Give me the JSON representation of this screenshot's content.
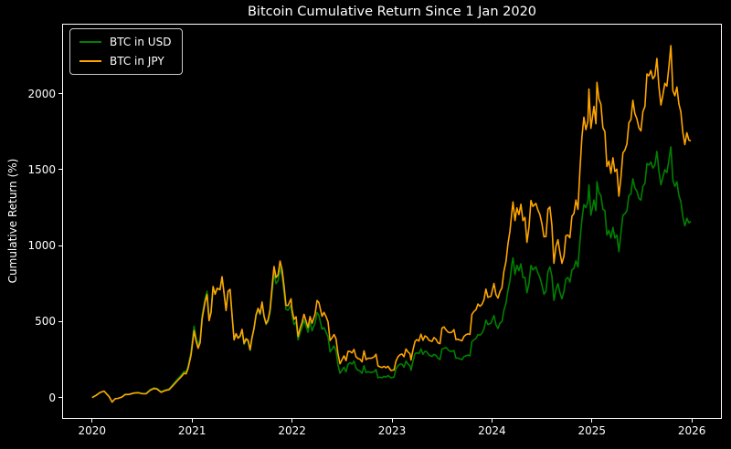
{
  "chart_data": {
    "type": "line",
    "title": "Bitcoin Cumulative Return Since 1 Jan 2020",
    "xlabel": "",
    "ylabel": "Cumulative Return (%)",
    "background_color": "#000000",
    "text_color": "#ffffff",
    "spine_color": "#ffffff",
    "grid": false,
    "legend_position": "upper-left",
    "xlim": [
      2019.7,
      2026.3
    ],
    "ylim": [
      -140,
      2460
    ],
    "x_ticks": [
      2020,
      2021,
      2022,
      2023,
      2024,
      2025,
      2026
    ],
    "x_tick_labels": [
      "2020",
      "2021",
      "2022",
      "2023",
      "2024",
      "2025",
      "2026"
    ],
    "y_ticks": [
      0,
      500,
      1000,
      1500,
      2000
    ],
    "y_tick_labels": [
      "0",
      "500",
      "1000",
      "1500",
      "2000"
    ],
    "x": [
      2020.0,
      2020.04,
      2020.08,
      2020.12,
      2020.17,
      2020.2,
      2020.23,
      2020.26,
      2020.3,
      2020.33,
      2020.37,
      2020.42,
      2020.46,
      2020.5,
      2020.54,
      2020.58,
      2020.62,
      2020.65,
      2020.69,
      2020.73,
      2020.77,
      2020.81,
      2020.85,
      2020.89,
      2020.92,
      2020.94,
      2020.96,
      2020.99,
      2021.02,
      2021.04,
      2021.06,
      2021.08,
      2021.1,
      2021.13,
      2021.15,
      2021.17,
      2021.19,
      2021.21,
      2021.23,
      2021.25,
      2021.28,
      2021.3,
      2021.32,
      2021.34,
      2021.36,
      2021.38,
      2021.4,
      2021.42,
      2021.44,
      2021.46,
      2021.48,
      2021.5,
      2021.52,
      2021.54,
      2021.56,
      2021.58,
      2021.6,
      2021.62,
      2021.64,
      2021.66,
      2021.68,
      2021.7,
      2021.72,
      2021.74,
      2021.76,
      2021.78,
      2021.8,
      2021.82,
      2021.84,
      2021.86,
      2021.88,
      2021.9,
      2021.92,
      2021.94,
      2021.96,
      2021.99,
      2022.0,
      2022.02,
      2022.04,
      2022.06,
      2022.08,
      2022.1,
      2022.12,
      2022.14,
      2022.16,
      2022.18,
      2022.2,
      2022.23,
      2022.25,
      2022.27,
      2022.3,
      2022.32,
      2022.34,
      2022.36,
      2022.38,
      2022.4,
      2022.42,
      2022.44,
      2022.46,
      2022.48,
      2022.5,
      2022.52,
      2022.54,
      2022.56,
      2022.58,
      2022.6,
      2022.62,
      2022.64,
      2022.66,
      2022.68,
      2022.7,
      2022.72,
      2022.74,
      2022.76,
      2022.79,
      2022.82,
      2022.84,
      2022.86,
      2022.88,
      2022.9,
      2022.92,
      2022.94,
      2022.96,
      2022.99,
      2023.02,
      2023.04,
      2023.06,
      2023.08,
      2023.1,
      2023.12,
      2023.14,
      2023.16,
      2023.18,
      2023.19,
      2023.21,
      2023.23,
      2023.25,
      2023.27,
      2023.29,
      2023.31,
      2023.33,
      2023.35,
      2023.37,
      2023.4,
      2023.42,
      2023.44,
      2023.46,
      2023.48,
      2023.5,
      2023.52,
      2023.54,
      2023.56,
      2023.58,
      2023.6,
      2023.62,
      2023.64,
      2023.66,
      2023.68,
      2023.7,
      2023.72,
      2023.74,
      2023.76,
      2023.78,
      2023.8,
      2023.82,
      2023.84,
      2023.86,
      2023.88,
      2023.9,
      2023.92,
      2023.94,
      2023.96,
      2023.99,
      2024.02,
      2024.04,
      2024.06,
      2024.08,
      2024.1,
      2024.12,
      2024.14,
      2024.16,
      2024.18,
      2024.2,
      2024.21,
      2024.23,
      2024.25,
      2024.27,
      2024.29,
      2024.31,
      2024.33,
      2024.35,
      2024.37,
      2024.39,
      2024.41,
      2024.44,
      2024.46,
      2024.48,
      2024.5,
      2024.52,
      2024.54,
      2024.56,
      2024.58,
      2024.6,
      2024.62,
      2024.64,
      2024.66,
      2024.68,
      2024.7,
      2024.72,
      2024.74,
      2024.76,
      2024.78,
      2024.8,
      2024.82,
      2024.84,
      2024.86,
      2024.88,
      2024.9,
      2024.92,
      2024.94,
      2024.96,
      2024.97,
      2024.99,
      2025.02,
      2025.04,
      2025.05,
      2025.07,
      2025.09,
      2025.11,
      2025.13,
      2025.15,
      2025.17,
      2025.19,
      2025.21,
      2025.23,
      2025.25,
      2025.27,
      2025.29,
      2025.31,
      2025.33,
      2025.35,
      2025.37,
      2025.39,
      2025.41,
      2025.43,
      2025.45,
      2025.47,
      2025.49,
      2025.51,
      2025.53,
      2025.55,
      2025.57,
      2025.59,
      2025.61,
      2025.63,
      2025.65,
      2025.67,
      2025.69,
      2025.71,
      2025.73,
      2025.75,
      2025.77,
      2025.79,
      2025.81,
      2025.83,
      2025.85,
      2025.87,
      2025.89,
      2025.91,
      2025.93,
      2025.95,
      2025.97,
      2025.99
    ],
    "series": [
      {
        "name": "BTC in USD",
        "color": "#008000",
        "values": [
          0,
          15,
          33,
          42,
          8,
          -30,
          -7,
          -5,
          5,
          22,
          23,
          31,
          34,
          27,
          27,
          53,
          64,
          60,
          39,
          50,
          57,
          87,
          118,
          147,
          172,
          167,
          205,
          300,
          470,
          395,
          345,
          380,
          540,
          650,
          700,
          520,
          570,
          730,
          680,
          715,
          710,
          795,
          690,
          580,
          700,
          710,
          540,
          380,
          420,
          390,
          400,
          440,
          350,
          380,
          370,
          310,
          390,
          450,
          540,
          580,
          545,
          620,
          530,
          480,
          500,
          560,
          690,
          820,
          750,
          770,
          858,
          800,
          690,
          580,
          575,
          610,
          540,
          480,
          500,
          380,
          425,
          460,
          510,
          470,
          430,
          500,
          440,
          490,
          560,
          540,
          450,
          460,
          430,
          400,
          300,
          320,
          340,
          310,
          215,
          160,
          180,
          200,
          170,
          220,
          230,
          220,
          240,
          195,
          180,
          175,
          160,
          210,
          165,
          170,
          165,
          170,
          185,
          130,
          135,
          130,
          140,
          135,
          145,
          130,
          135,
          190,
          210,
          220,
          220,
          200,
          240,
          220,
          210,
          180,
          240,
          290,
          295,
          290,
          320,
          285,
          305,
          300,
          280,
          270,
          285,
          277,
          260,
          250,
          320,
          325,
          330,
          315,
          305,
          305,
          310,
          260,
          260,
          255,
          250,
          270,
          275,
          280,
          275,
          370,
          380,
          390,
          415,
          410,
          425,
          450,
          510,
          480,
          490,
          540,
          480,
          455,
          490,
          500,
          575,
          620,
          705,
          770,
          880,
          920,
          810,
          870,
          835,
          880,
          790,
          790,
          690,
          750,
          870,
          840,
          860,
          820,
          790,
          740,
          680,
          700,
          830,
          860,
          800,
          640,
          710,
          750,
          690,
          650,
          700,
          780,
          790,
          760,
          840,
          850,
          900,
          860,
          1030,
          1170,
          1270,
          1250,
          1290,
          1400,
          1200,
          1300,
          1230,
          1420,
          1350,
          1330,
          1240,
          1230,
          1070,
          1100,
          1050,
          1120,
          1050,
          1070,
          960,
          1080,
          1200,
          1210,
          1230,
          1330,
          1340,
          1440,
          1380,
          1360,
          1310,
          1300,
          1390,
          1410,
          1540,
          1530,
          1550,
          1510,
          1530,
          1620,
          1490,
          1400,
          1450,
          1500,
          1480,
          1560,
          1650,
          1430,
          1390,
          1420,
          1330,
          1290,
          1190,
          1130,
          1180,
          1150,
          1160
        ]
      },
      {
        "name": "BTC in JPY",
        "color": "#ffa500",
        "values": [
          0,
          15,
          34,
          43,
          6,
          -29,
          -7,
          -5,
          4,
          20,
          21,
          30,
          32,
          26,
          25,
          48,
          60,
          56,
          35,
          46,
          52,
          80,
          109,
          136,
          160,
          156,
          191,
          280,
          440,
          372,
          325,
          361,
          518,
          628,
          678,
          506,
          560,
          730,
          680,
          719,
          710,
          795,
          686,
          573,
          700,
          712,
          540,
          380,
          420,
          392,
          404,
          449,
          357,
          388,
          377,
          315,
          395,
          457,
          545,
          587,
          553,
          629,
          536,
          487,
          514,
          577,
          726,
          863,
          790,
          808,
          898,
          842,
          732,
          607,
          606,
          650,
          577,
          515,
          532,
          402,
          455,
          492,
          548,
          504,
          461,
          533,
          489,
          549,
          639,
          623,
          535,
          561,
          533,
          498,
          376,
          394,
          415,
          388,
          289,
          222,
          250,
          275,
          243,
          305,
          304,
          294,
          317,
          269,
          257,
          253,
          235,
          308,
          250,
          259,
          259,
          267,
          285,
          208,
          202,
          198,
          206,
          196,
          206,
          178,
          182,
          241,
          269,
          282,
          287,
          269,
          320,
          300,
          288,
          247,
          315,
          370,
          382,
          372,
          417,
          377,
          406,
          398,
          377,
          370,
          395,
          384,
          361,
          355,
          457,
          465,
          446,
          431,
          427,
          431,
          447,
          382,
          384,
          379,
          374,
          403,
          414,
          419,
          416,
          549,
          567,
          579,
          616,
          601,
          614,
          643,
          714,
          660,
          667,
          751,
          677,
          655,
          697,
          722,
          832,
          894,
          1011,
          1096,
          1228,
          1287,
          1165,
          1248,
          1204,
          1272,
          1164,
          1186,
          1022,
          1120,
          1297,
          1258,
          1278,
          1234,
          1204,
          1143,
          1058,
          1060,
          1239,
          1254,
          1133,
          884,
          994,
          1039,
          955,
          883,
          932,
          1066,
          1070,
          1052,
          1193,
          1211,
          1300,
          1239,
          1499,
          1710,
          1845,
          1763,
          1818,
          2030,
          1772,
          1916,
          1802,
          2074,
          1966,
          1931,
          1776,
          1749,
          1520,
          1556,
          1476,
          1578,
          1487,
          1503,
          1326,
          1446,
          1610,
          1629,
          1669,
          1809,
          1830,
          1956,
          1868,
          1835,
          1775,
          1755,
          1882,
          1916,
          2130,
          2117,
          2152,
          2098,
          2117,
          2231,
          2047,
          1925,
          1993,
          2068,
          2049,
          2174,
          2315,
          2019,
          1986,
          2043,
          1931,
          1881,
          1745,
          1665,
          1743,
          1694,
          1689
        ]
      }
    ]
  }
}
